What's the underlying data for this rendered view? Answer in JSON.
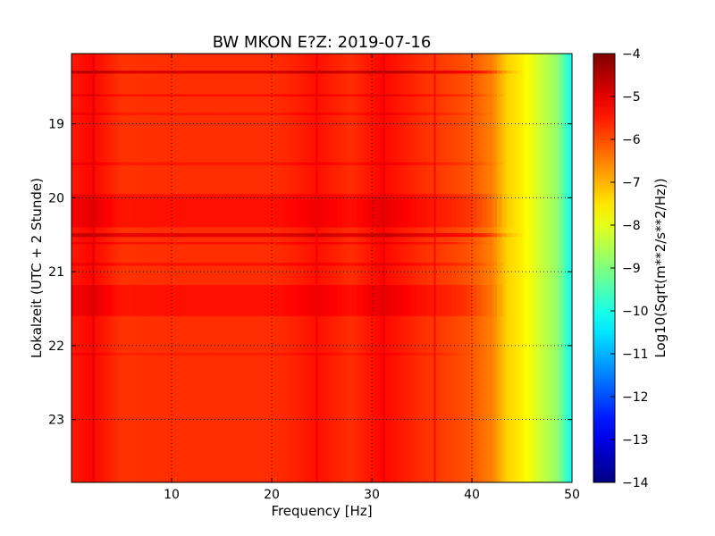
{
  "chart_data": {
    "type": "heatmap",
    "title": "BW MKON E?Z: 2019-07-16",
    "xlabel": "Frequency [Hz]",
    "ylabel": "Lokalzeit (UTC + 2 Stunde)",
    "colorbar_label": "Log10(Sqrt(m**2/s**2/Hz))",
    "colormap": "jet",
    "xlim": [
      0,
      50
    ],
    "ylim": [
      18.05,
      23.85
    ],
    "y_inverted": true,
    "clim": [
      -14,
      -4
    ],
    "grid": true,
    "x_ticks": [
      10,
      20,
      30,
      40,
      50
    ],
    "y_ticks": [
      19,
      20,
      21,
      22,
      23
    ],
    "colorbar_ticks": [
      -4,
      -5,
      -6,
      -7,
      -8,
      -9,
      -10,
      -11,
      -12,
      -13,
      -14
    ],
    "background_level": -5.9,
    "frequency_profile": [
      {
        "f": 0,
        "v": -5.5
      },
      {
        "f": 2,
        "v": -5.3
      },
      {
        "f": 5,
        "v": -5.75
      },
      {
        "f": 10,
        "v": -5.7
      },
      {
        "f": 20,
        "v": -5.7
      },
      {
        "f": 22,
        "v": -5.6
      },
      {
        "f": 24.5,
        "v": -5.4
      },
      {
        "f": 28,
        "v": -5.7
      },
      {
        "f": 31,
        "v": -5.3
      },
      {
        "f": 35,
        "v": -5.7
      },
      {
        "f": 38,
        "v": -5.9
      },
      {
        "f": 40,
        "v": -6.1
      },
      {
        "f": 42,
        "v": -6.5
      },
      {
        "f": 43.5,
        "v": -7.3
      },
      {
        "f": 45,
        "v": -7.6
      },
      {
        "f": 47,
        "v": -8.3
      },
      {
        "f": 48.5,
        "v": -8.8
      },
      {
        "f": 50,
        "v": -10.2
      }
    ],
    "time_bands": [
      {
        "t_start": 18.28,
        "t_end": 18.32,
        "f_max": 45,
        "delta": 0.8
      },
      {
        "t_start": 18.6,
        "t_end": 18.63,
        "f_max": 43,
        "delta": 0.35
      },
      {
        "t_start": 18.85,
        "t_end": 18.88,
        "f_max": 42,
        "delta": 0.25
      },
      {
        "t_start": 19.52,
        "t_end": 19.56,
        "f_max": 43,
        "delta": 0.25
      },
      {
        "t_start": 19.95,
        "t_end": 20.4,
        "f_max": 44,
        "delta": 0.3
      },
      {
        "t_start": 20.48,
        "t_end": 20.53,
        "f_max": 45,
        "delta": 0.7
      },
      {
        "t_start": 20.6,
        "t_end": 20.63,
        "f_max": 42,
        "delta": 0.3
      },
      {
        "t_start": 20.88,
        "t_end": 20.92,
        "f_max": 43,
        "delta": 0.3
      },
      {
        "t_start": 21.18,
        "t_end": 21.6,
        "f_max": 43,
        "delta": 0.3
      },
      {
        "t_start": 22.1,
        "t_end": 22.13,
        "f_max": 40,
        "delta": 0.2
      }
    ],
    "frequency_lines": [
      {
        "f": 2.2,
        "delta": 0.5
      },
      {
        "f": 24.5,
        "delta": 0.3
      },
      {
        "f": 31.2,
        "delta": 0.4
      },
      {
        "f": 36.3,
        "delta": 0.6
      }
    ]
  }
}
